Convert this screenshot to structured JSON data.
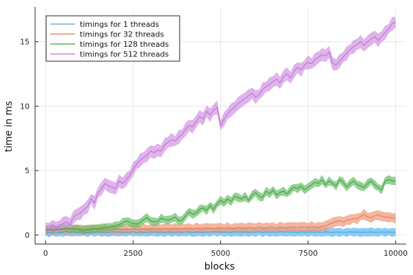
{
  "chart_data": {
    "type": "line",
    "title": "",
    "xlabel": "blocks",
    "ylabel": "time in ms",
    "xlim": [
      -300,
      10300
    ],
    "ylim": [
      -0.7,
      17.7
    ],
    "xticks": [
      0,
      2500,
      5000,
      7500,
      10000
    ],
    "xtick_labels": [
      "0",
      "2500",
      "5000",
      "7500",
      "10000"
    ],
    "yticks": [
      0,
      5,
      10,
      15
    ],
    "ytick_labels": [
      "0",
      "5",
      "10",
      "15"
    ],
    "grid": true,
    "legend_position": "top-left",
    "x_start": 0,
    "x_step": 100,
    "series": [
      {
        "name": "timings for 1 threads",
        "color": "#3d9fdd",
        "band_color": "#5fb8f0",
        "band_halfwidth": 0.3,
        "values": [
          0.22,
          0.18,
          0.25,
          0.2,
          0.23,
          0.19,
          0.27,
          0.21,
          0.24,
          0.2,
          0.26,
          0.22,
          0.19,
          0.24,
          0.21,
          0.25,
          0.2,
          0.23,
          0.18,
          0.26,
          0.22,
          0.24,
          0.2,
          0.23,
          0.21,
          0.25,
          0.19,
          0.24,
          0.22,
          0.2,
          0.26,
          0.23,
          0.21,
          0.24,
          0.19,
          0.25,
          0.22,
          0.2,
          0.24,
          0.21,
          0.23,
          0.25,
          0.19,
          0.22,
          0.24,
          0.2,
          0.23,
          0.21,
          0.26,
          0.22,
          0.24,
          0.2,
          0.23,
          0.19,
          0.25,
          0.22,
          0.21,
          0.24,
          0.2,
          0.23,
          0.22,
          0.25,
          0.19,
          0.24,
          0.21,
          0.23,
          0.2,
          0.26,
          0.22,
          0.24,
          0.21,
          0.23,
          0.19,
          0.25,
          0.2,
          0.22,
          0.24,
          0.21,
          0.23,
          0.2,
          0.25,
          0.22,
          0.19,
          0.24,
          0.21,
          0.23,
          0.2,
          0.25,
          0.22,
          0.24,
          0.19,
          0.23,
          0.21,
          0.25,
          0.2,
          0.22,
          0.24,
          0.21,
          0.23,
          0.2,
          0.22
        ]
      },
      {
        "name": "timings for 32 threads",
        "color": "#e27550",
        "band_color": "#ee9a78",
        "band_halfwidth": 0.35,
        "values": [
          0.4,
          0.42,
          0.38,
          0.45,
          0.41,
          0.44,
          0.39,
          0.43,
          0.4,
          0.46,
          0.42,
          0.38,
          0.44,
          0.41,
          0.47,
          0.43,
          0.39,
          0.45,
          0.42,
          0.4,
          0.48,
          0.44,
          0.41,
          0.46,
          0.43,
          0.49,
          0.45,
          0.42,
          0.5,
          0.46,
          0.44,
          0.51,
          0.47,
          0.45,
          0.52,
          0.48,
          0.46,
          0.53,
          0.49,
          0.47,
          0.54,
          0.5,
          0.48,
          0.55,
          0.51,
          0.49,
          0.56,
          0.52,
          0.5,
          0.57,
          0.53,
          0.51,
          0.58,
          0.54,
          0.52,
          0.59,
          0.55,
          0.53,
          0.6,
          0.56,
          0.54,
          0.61,
          0.57,
          0.55,
          0.62,
          0.58,
          0.56,
          0.63,
          0.59,
          0.57,
          0.64,
          0.6,
          0.58,
          0.65,
          0.61,
          0.59,
          0.66,
          0.62,
          0.6,
          0.67,
          0.7,
          0.85,
          0.95,
          1.05,
          1.1,
          1.0,
          1.15,
          1.2,
          1.3,
          1.25,
          1.45,
          1.6,
          1.4,
          1.35,
          1.5,
          1.55,
          1.45,
          1.4,
          1.38,
          1.35,
          1.3
        ]
      },
      {
        "name": "timings for 128 threads",
        "color": "#3a9a3a",
        "band_color": "#6bbf6b",
        "band_halfwidth": 0.3,
        "values": [
          0.35,
          0.4,
          0.42,
          0.38,
          0.45,
          0.5,
          0.55,
          0.48,
          0.52,
          0.45,
          0.4,
          0.38,
          0.42,
          0.45,
          0.5,
          0.48,
          0.55,
          0.6,
          0.58,
          0.65,
          0.7,
          0.8,
          0.95,
          1.1,
          1.0,
          0.9,
          0.85,
          0.95,
          1.2,
          1.35,
          1.1,
          1.0,
          1.05,
          1.3,
          1.2,
          1.15,
          1.25,
          1.4,
          1.1,
          1.15,
          1.5,
          1.8,
          1.6,
          1.7,
          2.0,
          2.1,
          1.9,
          2.3,
          2.0,
          2.4,
          2.7,
          2.5,
          2.8,
          2.6,
          3.0,
          2.9,
          2.8,
          3.0,
          2.7,
          3.1,
          3.3,
          3.0,
          2.9,
          3.4,
          3.2,
          3.5,
          3.1,
          3.3,
          3.4,
          3.2,
          3.5,
          3.7,
          3.6,
          3.8,
          3.5,
          3.7,
          3.9,
          4.1,
          4.0,
          4.3,
          3.9,
          4.2,
          4.0,
          3.8,
          4.3,
          4.1,
          3.7,
          4.0,
          4.2,
          3.9,
          3.8,
          3.7,
          4.0,
          4.2,
          3.9,
          3.7,
          3.5,
          4.2,
          4.3,
          4.2,
          4.2
        ]
      },
      {
        "name": "timings for 512 threads",
        "color": "#b86bd0",
        "band_color": "#d396e3",
        "band_halfwidth": 0.45,
        "values": [
          0.6,
          0.4,
          0.8,
          0.5,
          0.7,
          0.9,
          1.0,
          0.8,
          1.4,
          1.6,
          1.7,
          2.0,
          2.2,
          2.8,
          2.5,
          3.3,
          3.6,
          4.0,
          3.8,
          3.7,
          3.6,
          4.2,
          4.0,
          4.3,
          4.6,
          5.1,
          5.5,
          5.8,
          6.0,
          6.2,
          6.5,
          6.4,
          6.6,
          6.5,
          7.0,
          7.2,
          7.4,
          7.3,
          7.6,
          7.8,
          8.2,
          8.5,
          8.4,
          8.8,
          9.2,
          9.0,
          9.6,
          9.3,
          9.7,
          9.9,
          8.5,
          9.0,
          9.4,
          9.7,
          9.9,
          10.2,
          10.4,
          10.6,
          10.8,
          11.0,
          10.7,
          10.9,
          11.3,
          11.5,
          11.7,
          11.9,
          12.1,
          11.8,
          12.3,
          12.5,
          12.2,
          12.7,
          13.0,
          12.8,
          13.2,
          13.4,
          13.3,
          13.6,
          13.8,
          14.0,
          13.9,
          14.2,
          13.3,
          13.2,
          13.5,
          13.8,
          14.1,
          14.4,
          14.6,
          14.8,
          15.0,
          14.7,
          15.0,
          15.2,
          15.4,
          15.1,
          15.4,
          15.7,
          16.0,
          16.4,
          16.5
        ]
      }
    ]
  }
}
